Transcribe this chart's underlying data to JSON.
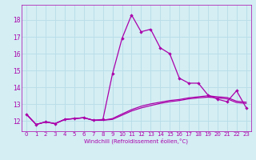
{
  "xlabel": "Windchill (Refroidissement éolien,°C)",
  "bg_color": "#d4eef4",
  "grid_color": "#b8dde8",
  "line_color": "#aa00aa",
  "x_ticks": [
    0,
    1,
    2,
    3,
    4,
    5,
    6,
    7,
    8,
    9,
    10,
    11,
    12,
    13,
    14,
    15,
    16,
    17,
    18,
    19,
    20,
    21,
    22,
    23
  ],
  "y_ticks": [
    12,
    13,
    14,
    15,
    16,
    17,
    18
  ],
  "xlim": [
    -0.5,
    23.5
  ],
  "ylim": [
    11.4,
    18.9
  ],
  "line1_x": [
    0,
    1,
    2,
    3,
    4,
    5,
    6,
    7,
    8,
    9,
    10,
    11,
    12,
    13,
    14,
    15,
    16,
    17,
    18,
    19,
    20,
    21,
    22,
    23
  ],
  "line1_y": [
    12.4,
    11.8,
    11.95,
    11.85,
    12.1,
    12.15,
    12.2,
    12.05,
    12.1,
    14.8,
    16.9,
    18.3,
    17.3,
    17.45,
    16.35,
    16.0,
    14.55,
    14.25,
    14.25,
    13.55,
    13.3,
    13.15,
    13.8,
    12.8
  ],
  "line2_x": [
    0,
    1,
    2,
    3,
    4,
    5,
    6,
    7,
    8,
    9,
    10,
    11,
    12,
    13,
    14,
    15,
    16,
    17,
    18,
    19,
    20,
    21,
    22,
    23
  ],
  "line2_y": [
    12.4,
    11.8,
    11.95,
    11.85,
    12.1,
    12.15,
    12.2,
    12.05,
    12.05,
    12.1,
    12.35,
    12.6,
    12.78,
    12.92,
    13.05,
    13.15,
    13.22,
    13.32,
    13.38,
    13.42,
    13.38,
    13.32,
    13.1,
    13.05
  ],
  "line3_x": [
    0,
    1,
    2,
    3,
    4,
    5,
    6,
    7,
    8,
    9,
    10,
    11,
    12,
    13,
    14,
    15,
    16,
    17,
    18,
    19,
    20,
    21,
    22,
    23
  ],
  "line3_y": [
    12.4,
    11.8,
    11.95,
    11.85,
    12.1,
    12.15,
    12.2,
    12.05,
    12.05,
    12.15,
    12.42,
    12.68,
    12.88,
    13.02,
    13.12,
    13.22,
    13.28,
    13.38,
    13.44,
    13.5,
    13.44,
    13.4,
    13.18,
    13.12
  ],
  "tickfont": 5,
  "labelfont": 5
}
